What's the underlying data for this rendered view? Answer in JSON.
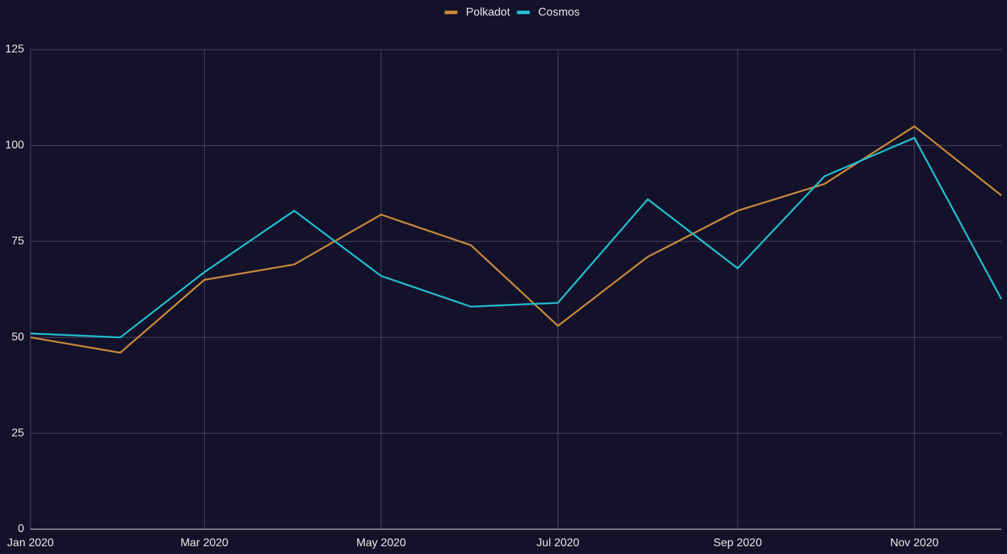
{
  "chart_data": {
    "type": "line",
    "x": [
      "2020-01",
      "2020-02",
      "2020-03",
      "2020-04",
      "2020-05",
      "2020-06",
      "2020-07",
      "2020-08",
      "2020-09",
      "2020-10",
      "2020-11",
      "2020-12"
    ],
    "series": [
      {
        "name": "Polkadot",
        "color": "#c8883a",
        "values": [
          50,
          46,
          65,
          69,
          82,
          74,
          53,
          71,
          83,
          90,
          105,
          87
        ]
      },
      {
        "name": "Cosmos",
        "color": "#22bcd0",
        "values": [
          51,
          50,
          67,
          83,
          66,
          58,
          59,
          86,
          68,
          92,
          102,
          60
        ]
      }
    ],
    "xlim": [
      "2020-01",
      "2020-12"
    ],
    "xticks": [
      {
        "value": "2020-01",
        "label": "Jan 2020"
      },
      {
        "value": "2020-03",
        "label": "Mar 2020"
      },
      {
        "value": "2020-05",
        "label": "May 2020"
      },
      {
        "value": "2020-07",
        "label": "Jul 2020"
      },
      {
        "value": "2020-09",
        "label": "Sep 2020"
      },
      {
        "value": "2020-11",
        "label": "Nov 2020"
      }
    ],
    "ylim": [
      0,
      125
    ],
    "yticks": [
      0,
      25,
      50,
      75,
      100,
      125
    ],
    "grid": true,
    "legend": "top"
  }
}
